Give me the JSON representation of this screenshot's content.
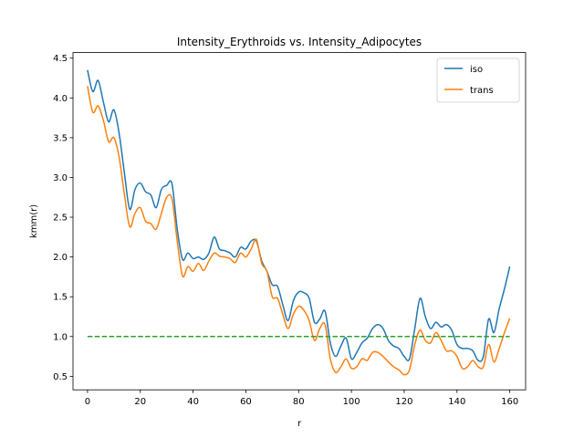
{
  "chart_data": {
    "type": "line",
    "title": "Intensity_Erythroids vs. Intensity_Adipocytes",
    "xlabel": "r",
    "ylabel": "kmm(r)",
    "xlim": [
      -5.5,
      166
    ],
    "ylim": [
      0.33,
      4.57
    ],
    "xticks": [
      0,
      20,
      40,
      60,
      80,
      100,
      120,
      140,
      160
    ],
    "yticks": [
      0.5,
      1.0,
      1.5,
      2.0,
      2.5,
      3.0,
      3.5,
      4.0,
      4.5
    ],
    "xtick_labels": [
      "0",
      "20",
      "40",
      "60",
      "80",
      "100",
      "120",
      "140",
      "160"
    ],
    "ytick_labels": [
      "0.5",
      "1.0",
      "1.5",
      "2.0",
      "2.5",
      "3.0",
      "3.5",
      "4.0",
      "4.5"
    ],
    "grid": false,
    "legend_position": "top-right",
    "x": [
      0,
      2,
      4,
      6,
      8,
      10,
      12,
      14,
      16,
      18,
      20,
      22,
      24,
      26,
      28,
      30,
      32,
      34,
      36,
      38,
      40,
      42,
      44,
      46,
      48,
      50,
      52,
      54,
      56,
      58,
      60,
      62,
      64,
      66,
      68,
      70,
      72,
      74,
      76,
      78,
      80,
      82,
      84,
      86,
      88,
      90,
      92,
      94,
      96,
      98,
      100,
      102,
      104,
      106,
      108,
      110,
      112,
      114,
      116,
      118,
      120,
      122,
      124,
      126,
      128,
      130,
      132,
      134,
      136,
      138,
      140,
      142,
      144,
      146,
      148,
      150,
      152,
      154,
      156,
      158,
      160
    ],
    "series": [
      {
        "name": "iso",
        "color": "#1f77b4",
        "values": [
          4.35,
          4.08,
          4.22,
          3.95,
          3.7,
          3.85,
          3.55,
          3.05,
          2.6,
          2.85,
          2.93,
          2.82,
          2.78,
          2.62,
          2.85,
          2.9,
          2.92,
          2.35,
          1.97,
          2.05,
          1.98,
          2.0,
          1.97,
          2.05,
          2.25,
          2.1,
          2.08,
          2.05,
          2.0,
          2.12,
          2.1,
          2.2,
          2.2,
          1.95,
          1.82,
          1.65,
          1.63,
          1.4,
          1.2,
          1.45,
          1.56,
          1.55,
          1.48,
          1.18,
          1.22,
          1.32,
          0.92,
          0.75,
          0.88,
          0.98,
          0.72,
          0.8,
          0.92,
          0.98,
          1.1,
          1.15,
          1.1,
          0.95,
          0.88,
          0.85,
          0.75,
          0.72,
          1.1,
          1.48,
          1.25,
          1.1,
          1.18,
          1.12,
          1.15,
          1.08,
          0.9,
          0.85,
          0.85,
          0.82,
          0.7,
          0.75,
          1.22,
          1.05,
          1.35,
          1.6,
          1.88
        ]
      },
      {
        "name": "trans",
        "color": "#ff7f0e",
        "values": [
          4.15,
          3.82,
          3.9,
          3.72,
          3.45,
          3.5,
          3.25,
          2.78,
          2.38,
          2.55,
          2.62,
          2.45,
          2.42,
          2.35,
          2.55,
          2.75,
          2.73,
          2.2,
          1.76,
          1.88,
          1.82,
          1.92,
          1.83,
          1.95,
          2.05,
          2.01,
          2.0,
          1.98,
          1.93,
          2.05,
          2.0,
          2.1,
          2.22,
          1.92,
          1.82,
          1.5,
          1.48,
          1.28,
          1.1,
          1.28,
          1.38,
          1.33,
          1.2,
          0.95,
          1.1,
          1.15,
          0.72,
          0.55,
          0.62,
          0.72,
          0.6,
          0.62,
          0.72,
          0.7,
          0.8,
          0.8,
          0.75,
          0.68,
          0.62,
          0.58,
          0.52,
          0.58,
          0.9,
          1.08,
          0.95,
          0.92,
          1.05,
          0.95,
          0.82,
          0.82,
          0.75,
          0.6,
          0.62,
          0.7,
          0.62,
          0.62,
          0.9,
          0.68,
          0.85,
          1.05,
          1.23
        ]
      },
      {
        "name": "",
        "color": "#2ca02c",
        "dashed": true,
        "values": [
          1.0,
          1.0,
          1.0,
          1.0,
          1.0,
          1.0,
          1.0,
          1.0,
          1.0,
          1.0,
          1.0,
          1.0,
          1.0,
          1.0,
          1.0,
          1.0,
          1.0,
          1.0,
          1.0,
          1.0,
          1.0,
          1.0,
          1.0,
          1.0,
          1.0,
          1.0,
          1.0,
          1.0,
          1.0,
          1.0,
          1.0,
          1.0,
          1.0,
          1.0,
          1.0,
          1.0,
          1.0,
          1.0,
          1.0,
          1.0,
          1.0,
          1.0,
          1.0,
          1.0,
          1.0,
          1.0,
          1.0,
          1.0,
          1.0,
          1.0,
          1.0,
          1.0,
          1.0,
          1.0,
          1.0,
          1.0,
          1.0,
          1.0,
          1.0,
          1.0,
          1.0,
          1.0,
          1.0,
          1.0,
          1.0,
          1.0,
          1.0,
          1.0,
          1.0,
          1.0,
          1.0,
          1.0,
          1.0,
          1.0,
          1.0,
          1.0,
          1.0,
          1.0,
          1.0,
          1.0,
          1.0
        ]
      }
    ]
  }
}
